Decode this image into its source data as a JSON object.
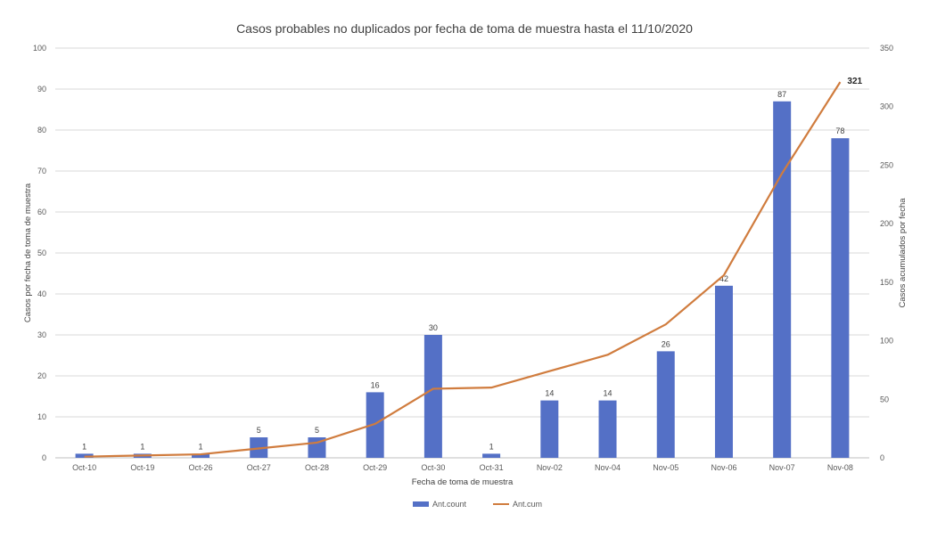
{
  "chart_data": {
    "type": "bar",
    "title": "Casos probables no duplicados por fecha de toma de muestra hasta el 11/10/2020",
    "xlabel": "Fecha de toma de muestra",
    "ylabel": "Casos por fecha de toma de muestra",
    "y2label": "Casos acumulados por fecha",
    "categories": [
      "Oct-10",
      "Oct-19",
      "Oct-26",
      "Oct-27",
      "Oct-28",
      "Oct-29",
      "Oct-30",
      "Oct-31",
      "Nov-02",
      "Nov-04",
      "Nov-05",
      "Nov-06",
      "Nov-07",
      "Nov-08"
    ],
    "ylim": [
      0,
      100
    ],
    "yticks": [
      "0",
      "10",
      "20",
      "30",
      "40",
      "50",
      "60",
      "70",
      "80",
      "90",
      "100"
    ],
    "y2lim": [
      0,
      350
    ],
    "y2ticks": [
      "0",
      "50",
      "100",
      "150",
      "200",
      "250",
      "300",
      "350"
    ],
    "grid": true,
    "legend_position": "bottom",
    "series": [
      {
        "name": "Ant.count",
        "type": "bar",
        "axis": "left",
        "color": "#5470c6",
        "values": [
          1,
          1,
          1,
          5,
          5,
          16,
          30,
          1,
          14,
          14,
          26,
          42,
          87,
          78
        ],
        "data_labels": [
          "1",
          "1",
          "1",
          "5",
          "5",
          "16",
          "30",
          "1",
          "14",
          "14",
          "26",
          "42",
          "87",
          "78"
        ]
      },
      {
        "name": "Ant.cum",
        "type": "line",
        "axis": "right",
        "color": "#d07c3e",
        "values": [
          1,
          2,
          3,
          8,
          13,
          29,
          59,
          60,
          74,
          88,
          114,
          156,
          243,
          321
        ],
        "end_label": "321"
      }
    ]
  }
}
